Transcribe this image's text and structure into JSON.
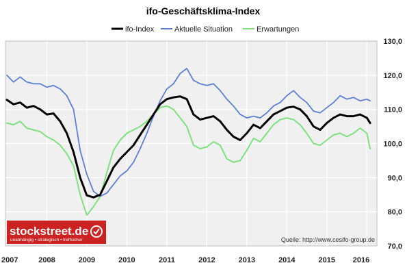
{
  "chart_data": {
    "type": "line",
    "title": "ifo-Geschäftsklima-Index",
    "legend": {
      "placement": "top",
      "entries": [
        "ifo-Index",
        "Aktuelle Situation",
        "Erwartungen"
      ]
    },
    "x_ticks": [
      "2007",
      "2008",
      "2009",
      "2010",
      "2011",
      "2012",
      "2013",
      "2014",
      "2015",
      "2016"
    ],
    "y_ticks": [
      "130,0",
      "120,0",
      "110,0",
      "100,0",
      "90,0",
      "80,0",
      "70,0"
    ],
    "ylim": [
      70,
      130
    ],
    "xlim": [
      "2007-01",
      "2016-03"
    ],
    "grid": true,
    "y_axis_side": "right",
    "colors": {
      "ifo_index": "#000000",
      "aktuelle_situation": "#5b7fd6",
      "erwartungen": "#7ee07e",
      "plot_bg": "#f0f0f0",
      "grid": "#ffffff",
      "logo_bg": "#cc2222"
    },
    "series": [
      {
        "name": "ifo-Index",
        "points": [
          [
            "2007-01",
            112.8
          ],
          [
            "2007-03",
            111.5
          ],
          [
            "2007-05",
            112.0
          ],
          [
            "2007-07",
            110.5
          ],
          [
            "2007-09",
            111.0
          ],
          [
            "2007-11",
            110.0
          ],
          [
            "2008-01",
            108.5
          ],
          [
            "2008-03",
            108.8
          ],
          [
            "2008-05",
            106.5
          ],
          [
            "2008-07",
            103.0
          ],
          [
            "2008-09",
            97.5
          ],
          [
            "2008-11",
            90.0
          ],
          [
            "2009-01",
            84.8
          ],
          [
            "2009-03",
            84.2
          ],
          [
            "2009-05",
            85.0
          ],
          [
            "2009-07",
            89.0
          ],
          [
            "2009-09",
            93.0
          ],
          [
            "2009-11",
            95.5
          ],
          [
            "2010-01",
            97.5
          ],
          [
            "2010-03",
            99.5
          ],
          [
            "2010-05",
            102.5
          ],
          [
            "2010-07",
            105.5
          ],
          [
            "2010-09",
            108.5
          ],
          [
            "2010-11",
            111.5
          ],
          [
            "2011-01",
            113.0
          ],
          [
            "2011-03",
            113.5
          ],
          [
            "2011-05",
            113.8
          ],
          [
            "2011-07",
            113.0
          ],
          [
            "2011-09",
            108.5
          ],
          [
            "2011-11",
            107.0
          ],
          [
            "2012-01",
            107.5
          ],
          [
            "2012-03",
            108.0
          ],
          [
            "2012-05",
            106.5
          ],
          [
            "2012-07",
            104.0
          ],
          [
            "2012-09",
            102.0
          ],
          [
            "2012-11",
            101.0
          ],
          [
            "2013-01",
            103.0
          ],
          [
            "2013-03",
            105.5
          ],
          [
            "2013-05",
            104.5
          ],
          [
            "2013-07",
            106.5
          ],
          [
            "2013-09",
            108.5
          ],
          [
            "2013-11",
            109.5
          ],
          [
            "2014-01",
            110.5
          ],
          [
            "2014-03",
            110.8
          ],
          [
            "2014-05",
            110.0
          ],
          [
            "2014-07",
            108.0
          ],
          [
            "2014-09",
            105.0
          ],
          [
            "2014-11",
            104.0
          ],
          [
            "2015-01",
            106.0
          ],
          [
            "2015-03",
            107.5
          ],
          [
            "2015-05",
            108.5
          ],
          [
            "2015-07",
            108.0
          ],
          [
            "2015-09",
            108.0
          ],
          [
            "2015-11",
            108.5
          ],
          [
            "2016-01",
            107.5
          ],
          [
            "2016-02",
            106.0
          ]
        ]
      },
      {
        "name": "Aktuelle Situation",
        "points": [
          [
            "2007-01",
            120.0
          ],
          [
            "2007-03",
            118.0
          ],
          [
            "2007-05",
            119.5
          ],
          [
            "2007-07",
            118.0
          ],
          [
            "2007-09",
            117.5
          ],
          [
            "2007-11",
            117.5
          ],
          [
            "2008-01",
            116.5
          ],
          [
            "2008-03",
            117.0
          ],
          [
            "2008-05",
            116.0
          ],
          [
            "2008-07",
            114.0
          ],
          [
            "2008-09",
            110.0
          ],
          [
            "2008-11",
            98.0
          ],
          [
            "2009-01",
            91.0
          ],
          [
            "2009-03",
            86.0
          ],
          [
            "2009-05",
            84.5
          ],
          [
            "2009-07",
            85.5
          ],
          [
            "2009-09",
            88.0
          ],
          [
            "2009-11",
            90.5
          ],
          [
            "2010-01",
            92.0
          ],
          [
            "2010-03",
            94.5
          ],
          [
            "2010-05",
            98.5
          ],
          [
            "2010-07",
            103.0
          ],
          [
            "2010-09",
            108.0
          ],
          [
            "2010-11",
            112.5
          ],
          [
            "2011-01",
            116.0
          ],
          [
            "2011-03",
            117.5
          ],
          [
            "2011-05",
            120.5
          ],
          [
            "2011-07",
            122.0
          ],
          [
            "2011-09",
            118.5
          ],
          [
            "2011-11",
            117.5
          ],
          [
            "2012-01",
            117.0
          ],
          [
            "2012-03",
            117.5
          ],
          [
            "2012-05",
            115.5
          ],
          [
            "2012-07",
            113.0
          ],
          [
            "2012-09",
            111.0
          ],
          [
            "2012-11",
            108.5
          ],
          [
            "2013-01",
            107.5
          ],
          [
            "2013-03",
            108.0
          ],
          [
            "2013-05",
            107.5
          ],
          [
            "2013-07",
            109.0
          ],
          [
            "2013-09",
            111.0
          ],
          [
            "2013-11",
            112.0
          ],
          [
            "2014-01",
            114.0
          ],
          [
            "2014-03",
            115.5
          ],
          [
            "2014-05",
            113.5
          ],
          [
            "2014-07",
            112.0
          ],
          [
            "2014-09",
            109.5
          ],
          [
            "2014-11",
            109.0
          ],
          [
            "2015-01",
            110.5
          ],
          [
            "2015-03",
            112.0
          ],
          [
            "2015-05",
            114.0
          ],
          [
            "2015-07",
            113.0
          ],
          [
            "2015-09",
            113.5
          ],
          [
            "2015-11",
            112.5
          ],
          [
            "2016-01",
            113.0
          ],
          [
            "2016-02",
            112.5
          ]
        ]
      },
      {
        "name": "Erwartungen",
        "points": [
          [
            "2007-01",
            106.0
          ],
          [
            "2007-03",
            105.5
          ],
          [
            "2007-05",
            106.5
          ],
          [
            "2007-07",
            104.5
          ],
          [
            "2007-09",
            104.0
          ],
          [
            "2007-11",
            103.5
          ],
          [
            "2008-01",
            102.0
          ],
          [
            "2008-03",
            101.0
          ],
          [
            "2008-05",
            99.5
          ],
          [
            "2008-07",
            97.0
          ],
          [
            "2008-09",
            93.5
          ],
          [
            "2008-11",
            85.0
          ],
          [
            "2009-01",
            79.0
          ],
          [
            "2009-03",
            81.5
          ],
          [
            "2009-05",
            84.5
          ],
          [
            "2009-07",
            91.5
          ],
          [
            "2009-09",
            98.0
          ],
          [
            "2009-11",
            101.0
          ],
          [
            "2010-01",
            103.0
          ],
          [
            "2010-03",
            104.0
          ],
          [
            "2010-05",
            105.0
          ],
          [
            "2010-07",
            106.5
          ],
          [
            "2010-09",
            108.5
          ],
          [
            "2010-11",
            110.5
          ],
          [
            "2011-01",
            111.0
          ],
          [
            "2011-03",
            110.0
          ],
          [
            "2011-05",
            107.5
          ],
          [
            "2011-07",
            105.0
          ],
          [
            "2011-09",
            99.5
          ],
          [
            "2011-11",
            98.5
          ],
          [
            "2012-01",
            99.0
          ],
          [
            "2012-03",
            100.5
          ],
          [
            "2012-05",
            99.5
          ],
          [
            "2012-07",
            95.5
          ],
          [
            "2012-09",
            94.5
          ],
          [
            "2012-11",
            95.0
          ],
          [
            "2013-01",
            98.0
          ],
          [
            "2013-03",
            101.5
          ],
          [
            "2013-05",
            100.5
          ],
          [
            "2013-07",
            103.0
          ],
          [
            "2013-09",
            105.5
          ],
          [
            "2013-11",
            107.0
          ],
          [
            "2014-01",
            107.5
          ],
          [
            "2014-03",
            107.0
          ],
          [
            "2014-05",
            105.5
          ],
          [
            "2014-07",
            103.0
          ],
          [
            "2014-09",
            100.0
          ],
          [
            "2014-11",
            99.5
          ],
          [
            "2015-01",
            101.0
          ],
          [
            "2015-03",
            102.5
          ],
          [
            "2015-05",
            103.0
          ],
          [
            "2015-07",
            102.0
          ],
          [
            "2015-09",
            103.0
          ],
          [
            "2015-11",
            104.5
          ],
          [
            "2016-01",
            103.0
          ],
          [
            "2016-02",
            98.5
          ]
        ]
      }
    ]
  },
  "source": "Quelle: http://www.cesifo-group.de",
  "logo": {
    "name": "stockstreet.de",
    "tagline": "unabhängig • strategisch • treffsicher",
    "icon": "checkmark-badge-icon"
  }
}
